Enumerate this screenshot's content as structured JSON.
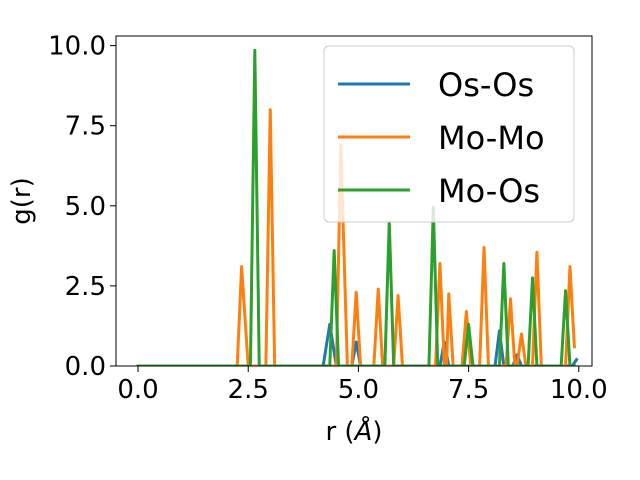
{
  "chart_data": {
    "type": "line",
    "title": "",
    "xlabel": "r (Å)",
    "ylabel": "g(r)",
    "xlim": [
      -0.5,
      10.3
    ],
    "ylim": [
      0,
      10.3
    ],
    "xticks": [
      {
        "value": 0.0,
        "label": "0.0"
      },
      {
        "value": 2.5,
        "label": "2.5"
      },
      {
        "value": 5.0,
        "label": "5.0"
      },
      {
        "value": 7.5,
        "label": "7.5"
      },
      {
        "value": 10.0,
        "label": "10.0"
      }
    ],
    "yticks": [
      {
        "value": 0.0,
        "label": "0.0"
      },
      {
        "value": 2.5,
        "label": "2.5"
      },
      {
        "value": 5.0,
        "label": "5.0"
      },
      {
        "value": 7.5,
        "label": "7.5"
      },
      {
        "value": 10.0,
        "label": "10.0"
      }
    ],
    "grid": false,
    "legend_position": "top-right",
    "series": [
      {
        "name": "Os-Os",
        "color": "#1f77b4",
        "points": [
          [
            0.0,
            0
          ],
          [
            4.2,
            0
          ],
          [
            4.35,
            1.3
          ],
          [
            4.5,
            0
          ],
          [
            4.85,
            0
          ],
          [
            4.95,
            0.75
          ],
          [
            5.05,
            0
          ],
          [
            6.85,
            0
          ],
          [
            6.95,
            0.75
          ],
          [
            7.05,
            0
          ],
          [
            8.1,
            0
          ],
          [
            8.2,
            1.1
          ],
          [
            8.3,
            0
          ],
          [
            8.5,
            0
          ],
          [
            8.6,
            0.35
          ],
          [
            8.7,
            0
          ],
          [
            9.85,
            0
          ],
          [
            9.95,
            0.2
          ]
        ]
      },
      {
        "name": "Mo-Mo",
        "color": "#ff7f0e",
        "points": [
          [
            0.0,
            0
          ],
          [
            2.25,
            0
          ],
          [
            2.35,
            3.1
          ],
          [
            2.5,
            0
          ],
          [
            2.9,
            0
          ],
          [
            3.0,
            8.0
          ],
          [
            3.1,
            0
          ],
          [
            4.5,
            0
          ],
          [
            4.6,
            6.9
          ],
          [
            4.75,
            0
          ],
          [
            4.85,
            0
          ],
          [
            4.95,
            2.3
          ],
          [
            5.05,
            0
          ],
          [
            5.35,
            0
          ],
          [
            5.45,
            2.4
          ],
          [
            5.55,
            0
          ],
          [
            5.8,
            0
          ],
          [
            5.9,
            2.2
          ],
          [
            6.0,
            0
          ],
          [
            6.75,
            0
          ],
          [
            6.85,
            3.2
          ],
          [
            6.95,
            0
          ],
          [
            7.0,
            0
          ],
          [
            7.05,
            2.25
          ],
          [
            7.15,
            0
          ],
          [
            7.35,
            0
          ],
          [
            7.45,
            1.7
          ],
          [
            7.55,
            0
          ],
          [
            7.75,
            0
          ],
          [
            7.85,
            3.7
          ],
          [
            7.95,
            0
          ],
          [
            8.35,
            0
          ],
          [
            8.45,
            2.1
          ],
          [
            8.55,
            0
          ],
          [
            8.6,
            0
          ],
          [
            8.7,
            1.0
          ],
          [
            8.8,
            0
          ],
          [
            8.95,
            0
          ],
          [
            9.05,
            3.55
          ],
          [
            9.15,
            0
          ],
          [
            9.7,
            0
          ],
          [
            9.8,
            3.1
          ],
          [
            9.9,
            0.6
          ]
        ]
      },
      {
        "name": "Mo-Os",
        "color": "#2ca02c",
        "points": [
          [
            0.0,
            0
          ],
          [
            2.55,
            0
          ],
          [
            2.65,
            9.85
          ],
          [
            2.75,
            0
          ],
          [
            4.35,
            0
          ],
          [
            4.45,
            3.6
          ],
          [
            4.55,
            0
          ],
          [
            5.6,
            0
          ],
          [
            5.7,
            4.5
          ],
          [
            5.8,
            0
          ],
          [
            6.6,
            0
          ],
          [
            6.7,
            4.95
          ],
          [
            6.8,
            0
          ],
          [
            7.4,
            0
          ],
          [
            7.5,
            1.3
          ],
          [
            7.6,
            0
          ],
          [
            8.2,
            0
          ],
          [
            8.3,
            3.2
          ],
          [
            8.4,
            0
          ],
          [
            8.85,
            0
          ],
          [
            8.95,
            2.75
          ],
          [
            9.05,
            0
          ],
          [
            9.6,
            0
          ],
          [
            9.7,
            2.35
          ],
          [
            9.8,
            0
          ],
          [
            9.9,
            0
          ]
        ]
      }
    ]
  }
}
